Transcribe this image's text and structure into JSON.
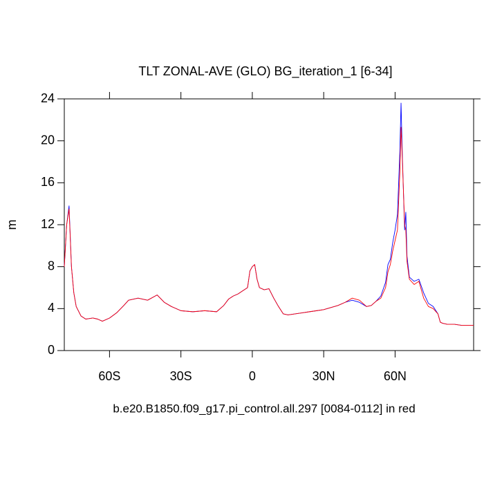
{
  "chart_data": {
    "type": "line",
    "title": "TLT ZONAL-AVE (GLO) BG_iteration_1 [6-34]",
    "xlabel": "b.e20.B1850.f09_g17.pi_control.all.297 [0084-0112] in red",
    "ylabel": "m",
    "x": [
      -79,
      -78,
      -77,
      -76,
      -75,
      -74,
      -72,
      -70,
      -67,
      -65,
      -63,
      -60,
      -57,
      -54,
      -52,
      -48,
      -44,
      -40,
      -37,
      -34,
      -30,
      -25,
      -20,
      -15,
      -12,
      -10,
      -8,
      -6,
      -4,
      -2,
      -1,
      0,
      1,
      2,
      3,
      5,
      7,
      9,
      11,
      13,
      15,
      18,
      21,
      24,
      27,
      30,
      33,
      36,
      39,
      42,
      45,
      48,
      50,
      52,
      54,
      56,
      57,
      58,
      59,
      60,
      61,
      62,
      62.5,
      63,
      64,
      64.5,
      65,
      66,
      68,
      70,
      72,
      74,
      76,
      78,
      79,
      80,
      82,
      85,
      88,
      93
    ],
    "series": [
      {
        "color": "#0000ff",
        "values": [
          8.0,
          12,
          13.8,
          8,
          5.5,
          4.2,
          3.3,
          3.0,
          3.1,
          3.0,
          2.8,
          3.1,
          3.6,
          4.3,
          4.8,
          5.0,
          4.8,
          5.3,
          4.6,
          4.2,
          3.8,
          3.7,
          3.8,
          3.7,
          4.3,
          4.9,
          5.2,
          5.4,
          5.7,
          6.0,
          7.6,
          8.0,
          8.2,
          6.8,
          6.0,
          5.8,
          5.9,
          5.0,
          4.2,
          3.5,
          3.4,
          3.5,
          3.6,
          3.7,
          3.8,
          3.9,
          4.1,
          4.3,
          4.6,
          4.8,
          4.6,
          4.2,
          4.3,
          4.7,
          5.2,
          6.5,
          8.2,
          8.7,
          10.3,
          11.5,
          13,
          19,
          23.6,
          19,
          11.5,
          13.2,
          9,
          7.0,
          6.6,
          6.8,
          5.5,
          4.5,
          4.2,
          3.5,
          2.7,
          2.6,
          2.5,
          2.5,
          2.4,
          2.4
        ]
      },
      {
        "color": "#ff0000",
        "values": [
          8.0,
          12,
          13.5,
          8,
          5.5,
          4.2,
          3.3,
          3.0,
          3.1,
          3.0,
          2.8,
          3.1,
          3.6,
          4.3,
          4.8,
          5.0,
          4.8,
          5.3,
          4.6,
          4.2,
          3.8,
          3.7,
          3.8,
          3.7,
          4.3,
          4.9,
          5.2,
          5.4,
          5.7,
          6.0,
          7.6,
          8.0,
          8.2,
          6.8,
          6.0,
          5.8,
          5.9,
          5.0,
          4.2,
          3.5,
          3.4,
          3.5,
          3.6,
          3.7,
          3.8,
          3.9,
          4.1,
          4.3,
          4.6,
          5.0,
          4.8,
          4.2,
          4.3,
          4.7,
          5.0,
          6.0,
          7.5,
          8.2,
          9.5,
          10.5,
          11.5,
          17,
          21.3,
          18.5,
          12,
          11.5,
          8.5,
          6.8,
          6.3,
          6.6,
          5.0,
          4.2,
          4.0,
          3.5,
          2.7,
          2.6,
          2.5,
          2.5,
          2.4,
          2.4
        ]
      }
    ],
    "xlim": [
      -79,
      93
    ],
    "xticks": [
      {
        "value": -60,
        "label": "60S"
      },
      {
        "value": -30,
        "label": "30S"
      },
      0,
      {
        "value": 30,
        "label": "30N"
      },
      {
        "value": 60,
        "label": "60N"
      }
    ],
    "ylim": [
      0,
      24
    ],
    "yticks": [
      0,
      4,
      8,
      12,
      16,
      20,
      24
    ]
  }
}
